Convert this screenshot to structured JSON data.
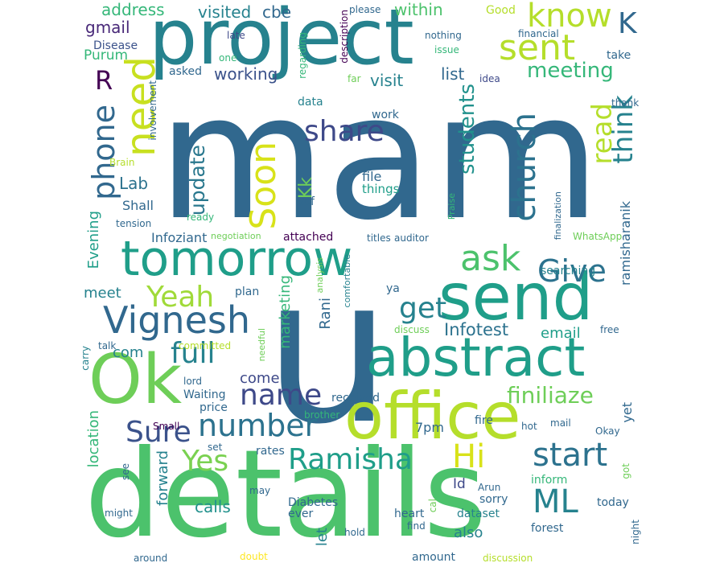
{
  "wordcloud": {
    "palette": {
      "purple": "#440154",
      "indigo": "#482878",
      "blue": "#3e4989",
      "steel": "#31688e",
      "teal": "#26828e",
      "green": "#1f9e89",
      "emerald": "#35b779",
      "lime": "#6ece58",
      "yellow": "#b5de2b",
      "gold": "#fde725"
    },
    "words": [
      {
        "text": "mam",
        "color": "#31688e"
      },
      {
        "text": "u",
        "color": "#31688e"
      },
      {
        "text": "details",
        "color": "#4cc26c"
      },
      {
        "text": "project",
        "color": "#26828e"
      },
      {
        "text": "Ok",
        "color": "#6ece58"
      },
      {
        "text": "office",
        "color": "#b5de2b"
      },
      {
        "text": "abstract",
        "color": "#1f9e89"
      },
      {
        "text": "tomorrow",
        "color": "#1f9e89"
      },
      {
        "text": "send",
        "color": "#1f9e89"
      },
      {
        "text": "Vignesh",
        "color": "#31688e"
      },
      {
        "text": "sent",
        "color": "#b5de2b"
      },
      {
        "text": "know",
        "color": "#b5de2b"
      },
      {
        "text": "need",
        "color": "#c8e020"
      },
      {
        "text": "R",
        "color": "#440154"
      },
      {
        "text": "K",
        "color": "#31688e"
      },
      {
        "text": "meeting",
        "color": "#35b779"
      },
      {
        "text": "share",
        "color": "#3e4989"
      },
      {
        "text": "Soon",
        "color": "#d8e219"
      },
      {
        "text": "update",
        "color": "#2a788e"
      },
      {
        "text": "phone",
        "color": "#31688e"
      },
      {
        "text": "church",
        "color": "#2c728e"
      },
      {
        "text": "students",
        "color": "#21918c"
      },
      {
        "text": "read",
        "color": "#b5de2b"
      },
      {
        "text": "think",
        "color": "#26828e"
      },
      {
        "text": "ask",
        "color": "#4cc26c"
      },
      {
        "text": "Give",
        "color": "#2c728e"
      },
      {
        "text": "Yeah",
        "color": "#a0da39"
      },
      {
        "text": "full",
        "color": "#26828e"
      },
      {
        "text": "get",
        "color": "#26828e"
      },
      {
        "text": "name",
        "color": "#3e4989"
      },
      {
        "text": "number",
        "color": "#2c728e"
      },
      {
        "text": "Sure",
        "color": "#3b528b"
      },
      {
        "text": "Yes",
        "color": "#7ad151"
      },
      {
        "text": "Ramisha",
        "color": "#1f9e89"
      },
      {
        "text": "Hi",
        "color": "#d8e219"
      },
      {
        "text": "start",
        "color": "#2c728e"
      },
      {
        "text": "ML",
        "color": "#26828e"
      },
      {
        "text": "finiliaze",
        "color": "#6ece58"
      },
      {
        "text": "Infotest",
        "color": "#2c728e"
      },
      {
        "text": "email",
        "color": "#1f9e89"
      },
      {
        "text": "address",
        "color": "#35b779"
      },
      {
        "text": "visited",
        "color": "#26828e"
      },
      {
        "text": "cbe",
        "color": "#31688e"
      },
      {
        "text": "within",
        "color": "#4cc26c"
      },
      {
        "text": "gmail",
        "color": "#482878"
      },
      {
        "text": "Purum",
        "color": "#35b779"
      },
      {
        "text": "working",
        "color": "#3b528b"
      },
      {
        "text": "visit",
        "color": "#26828e"
      },
      {
        "text": "list",
        "color": "#31688e"
      },
      {
        "text": "Kk",
        "color": "#6ece58"
      },
      {
        "text": "Lab",
        "color": "#2c728e"
      },
      {
        "text": "Shall",
        "color": "#31688e"
      },
      {
        "text": "Evening",
        "color": "#1f9e89"
      },
      {
        "text": "meet",
        "color": "#26828e"
      },
      {
        "text": "com",
        "color": "#26828e"
      },
      {
        "text": "come",
        "color": "#3e4989"
      },
      {
        "text": "marketing",
        "color": "#35b779"
      },
      {
        "text": "Rani",
        "color": "#31688e"
      },
      {
        "text": "ramisharanik",
        "color": "#31688e"
      },
      {
        "text": "location",
        "color": "#35b779"
      },
      {
        "text": "forward",
        "color": "#26828e"
      },
      {
        "text": "calls",
        "color": "#21918c"
      },
      {
        "text": "Id",
        "color": "#3e4989"
      },
      {
        "text": "also",
        "color": "#26828e"
      },
      {
        "text": "let",
        "color": "#26828e"
      },
      {
        "text": "yet",
        "color": "#31688e"
      },
      {
        "text": "Infoziant",
        "color": "#31688e"
      },
      {
        "text": "attached",
        "color": "#440154"
      },
      {
        "text": "data",
        "color": "#26828e"
      },
      {
        "text": "work",
        "color": "#31688e"
      },
      {
        "text": "file",
        "color": "#31688e"
      },
      {
        "text": "things",
        "color": "#1f9e89"
      },
      {
        "text": "vcf",
        "color": "#31688e"
      },
      {
        "text": "asked",
        "color": "#31688e"
      },
      {
        "text": "Disease",
        "color": "#3b528b"
      },
      {
        "text": "late",
        "color": "#3e4989"
      },
      {
        "text": "one",
        "color": "#35b779"
      },
      {
        "text": "far",
        "color": "#6ece58"
      },
      {
        "text": "please",
        "color": "#31688e"
      },
      {
        "text": "Good",
        "color": "#b5de2b"
      },
      {
        "text": "nothing",
        "color": "#31688e"
      },
      {
        "text": "financial",
        "color": "#31688e"
      },
      {
        "text": "issue",
        "color": "#35b779"
      },
      {
        "text": "take",
        "color": "#31688e"
      },
      {
        "text": "idea",
        "color": "#3e4989"
      },
      {
        "text": "thank",
        "color": "#31688e"
      },
      {
        "text": "description",
        "color": "#440154"
      },
      {
        "text": "regarding",
        "color": "#35b779"
      },
      {
        "text": "involvement",
        "color": "#31688e"
      },
      {
        "text": "Brain",
        "color": "#b5de2b"
      },
      {
        "text": "tension",
        "color": "#31688e"
      },
      {
        "text": "ready",
        "color": "#35b779"
      },
      {
        "text": "negotiation",
        "color": "#6ece58"
      },
      {
        "text": "titles",
        "color": "#31688e"
      },
      {
        "text": "auditor",
        "color": "#31688e"
      },
      {
        "text": "WhatsApp",
        "color": "#6ece58"
      },
      {
        "text": "finalization",
        "color": "#31688e"
      },
      {
        "text": "Praise",
        "color": "#35b779"
      },
      {
        "text": "analysis",
        "color": "#6ece58"
      },
      {
        "text": "comfortable",
        "color": "#26828e"
      },
      {
        "text": "plan",
        "color": "#31688e"
      },
      {
        "text": "ya",
        "color": "#31688e"
      },
      {
        "text": "searching",
        "color": "#26828e"
      },
      {
        "text": "discuss",
        "color": "#6ece58"
      },
      {
        "text": "free",
        "color": "#31688e"
      },
      {
        "text": "talk",
        "color": "#31688e"
      },
      {
        "text": "committed",
        "color": "#b5de2b"
      },
      {
        "text": "carry",
        "color": "#26828e"
      },
      {
        "text": "needful",
        "color": "#6ece58"
      },
      {
        "text": "lord",
        "color": "#31688e"
      },
      {
        "text": "Waiting",
        "color": "#31688e"
      },
      {
        "text": "price",
        "color": "#31688e"
      },
      {
        "text": "received",
        "color": "#31688e"
      },
      {
        "text": "brother",
        "color": "#35b779"
      },
      {
        "text": "7pm",
        "color": "#31688e"
      },
      {
        "text": "fire",
        "color": "#31688e"
      },
      {
        "text": "hot",
        "color": "#31688e"
      },
      {
        "text": "mail",
        "color": "#31688e"
      },
      {
        "text": "Okay",
        "color": "#31688e"
      },
      {
        "text": "Small",
        "color": "#440154"
      },
      {
        "text": "set",
        "color": "#31688e"
      },
      {
        "text": "rates",
        "color": "#31688e"
      },
      {
        "text": "see",
        "color": "#31688e"
      },
      {
        "text": "cal",
        "color": "#6ece58"
      },
      {
        "text": "Arun",
        "color": "#31688e"
      },
      {
        "text": "inform",
        "color": "#35b779"
      },
      {
        "text": "got",
        "color": "#6ece58"
      },
      {
        "text": "today",
        "color": "#31688e"
      },
      {
        "text": "might",
        "color": "#31688e"
      },
      {
        "text": "may",
        "color": "#31688e"
      },
      {
        "text": "Diabetes",
        "color": "#31688e"
      },
      {
        "text": "ever",
        "color": "#31688e"
      },
      {
        "text": "sorry",
        "color": "#31688e"
      },
      {
        "text": "dataset",
        "color": "#26828e"
      },
      {
        "text": "heart",
        "color": "#31688e"
      },
      {
        "text": "find",
        "color": "#31688e"
      },
      {
        "text": "forest",
        "color": "#31688e"
      },
      {
        "text": "night",
        "color": "#31688e"
      },
      {
        "text": "hold",
        "color": "#31688e"
      },
      {
        "text": "around",
        "color": "#31688e"
      },
      {
        "text": "doubt",
        "color": "#fde725"
      },
      {
        "text": "amount",
        "color": "#31688e"
      },
      {
        "text": "discussion",
        "color": "#b5de2b"
      }
    ]
  }
}
